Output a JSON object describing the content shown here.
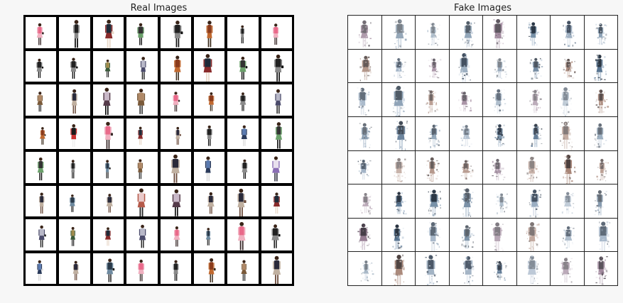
{
  "real": {
    "title": "Real Images",
    "palette": [
      [
        "#8a3b1c",
        "#c1692f",
        "#3a2a1a"
      ],
      [
        "#e8e0ee",
        "#8a6db5",
        "#2a2a3a"
      ],
      [
        "#c9b8c8",
        "#553b4a",
        "#111111"
      ],
      [
        "#b8b8c8",
        "#4b4b6b",
        "#222222"
      ],
      [
        "#333333",
        "#6aa06a",
        "#111111"
      ],
      [
        "#b08866",
        "#7a5a3a",
        "#2a2a2a"
      ],
      [
        "#1e2a38",
        "#8a2b2b",
        "#e9d9c9"
      ],
      [
        "#2a3a4a",
        "#6e8aa0",
        "#1a1a1a"
      ],
      [
        "#e9c9c9",
        "#b55a4a",
        "#222222"
      ],
      [
        "#8a6ab5",
        "#d9c9e9",
        "#333333"
      ],
      [
        "#e96a8a",
        "#f0b0c0",
        "#3a2a2a"
      ],
      [
        "#222222",
        "#8a8a8a",
        "#111111"
      ],
      [
        "#1a1a1a",
        "#c93030",
        "#f0f0f0"
      ],
      [
        "#a08a4a",
        "#3a5a3a",
        "#222222"
      ],
      [
        "#2a2a3a",
        "#c0b0a0",
        "#6a4a3a"
      ],
      [
        "#5a7ab0",
        "#2a3a5a",
        "#dddddd"
      ]
    ]
  },
  "fake": {
    "title": "Fake Images",
    "palette": [
      [
        "#1c2a3a",
        "#6f8aa3",
        "#c9d4e0"
      ],
      [
        "#253548",
        "#8aa0b8",
        "#d8dfe8"
      ],
      [
        "#3a2c2a",
        "#a07a6a",
        "#d5c4bc"
      ],
      [
        "#1a2533",
        "#4c6a88",
        "#b3c3d3"
      ],
      [
        "#2c3b4e",
        "#93a7bb",
        "#e2e8ef"
      ],
      [
        "#332a35",
        "#8b6e87",
        "#d7ccd6"
      ]
    ]
  }
}
